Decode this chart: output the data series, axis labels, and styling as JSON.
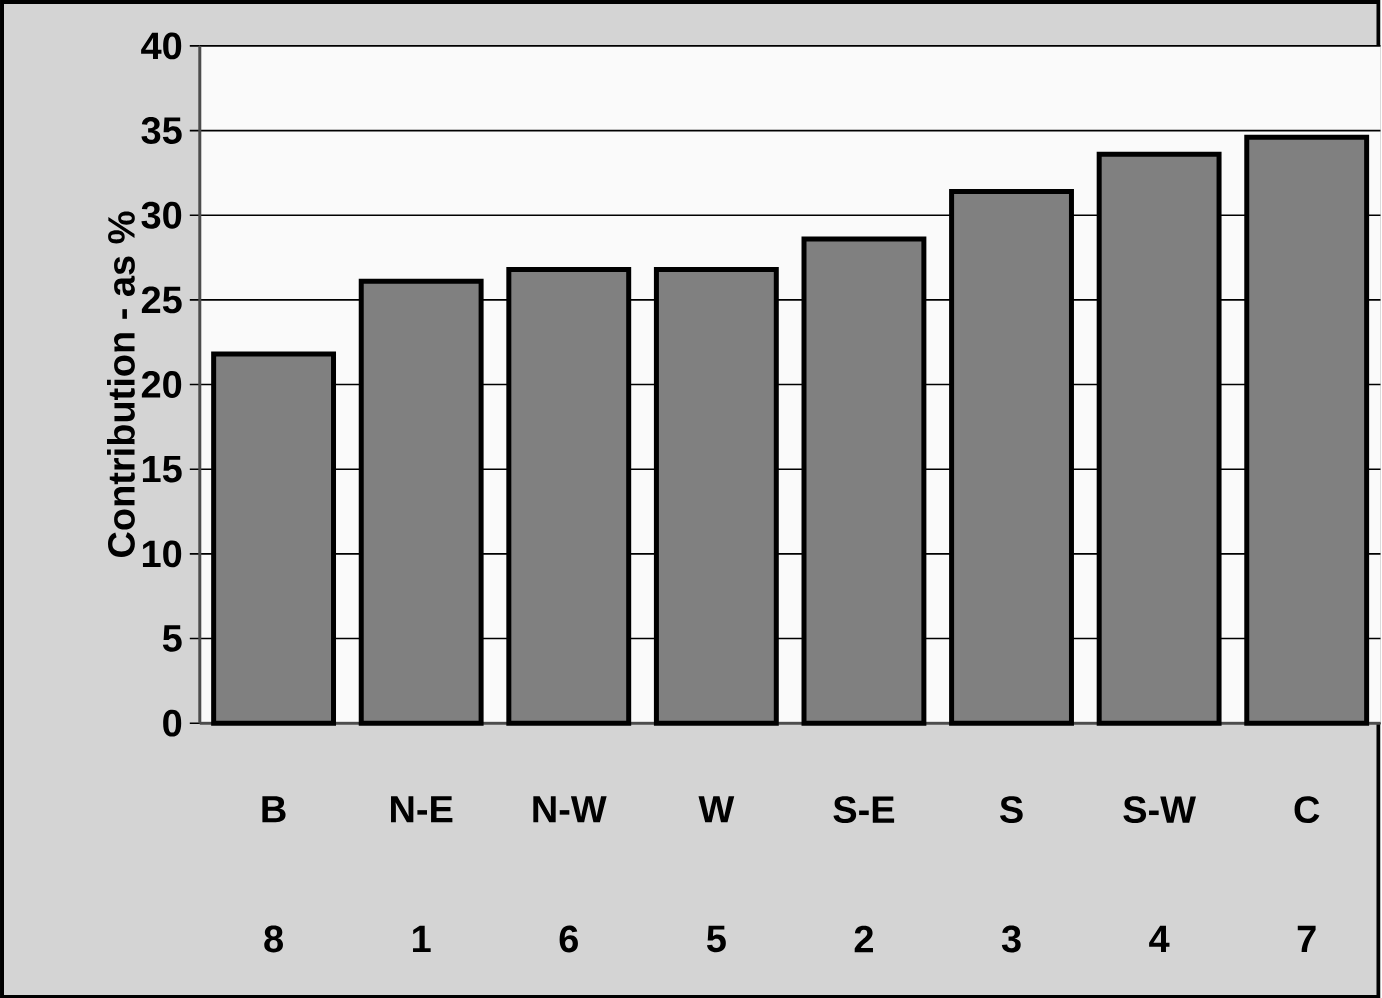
{
  "chart_data": {
    "type": "bar",
    "ylabel": "Contribution - as %",
    "categories": [
      "B",
      "N-E",
      "N-W",
      "W",
      "S-E",
      "S",
      "S-W",
      "C"
    ],
    "values": [
      21.8,
      26.1,
      26.8,
      26.8,
      28.6,
      31.4,
      33.6,
      34.6
    ],
    "color": "#808080",
    "ylim": [
      0,
      40
    ],
    "yticks": [
      0,
      5,
      10,
      15,
      20,
      25,
      30,
      35,
      40
    ],
    "grid": "y",
    "annotations": [
      "8",
      "1",
      "6",
      "5",
      "2",
      "3",
      "4",
      "7"
    ]
  }
}
